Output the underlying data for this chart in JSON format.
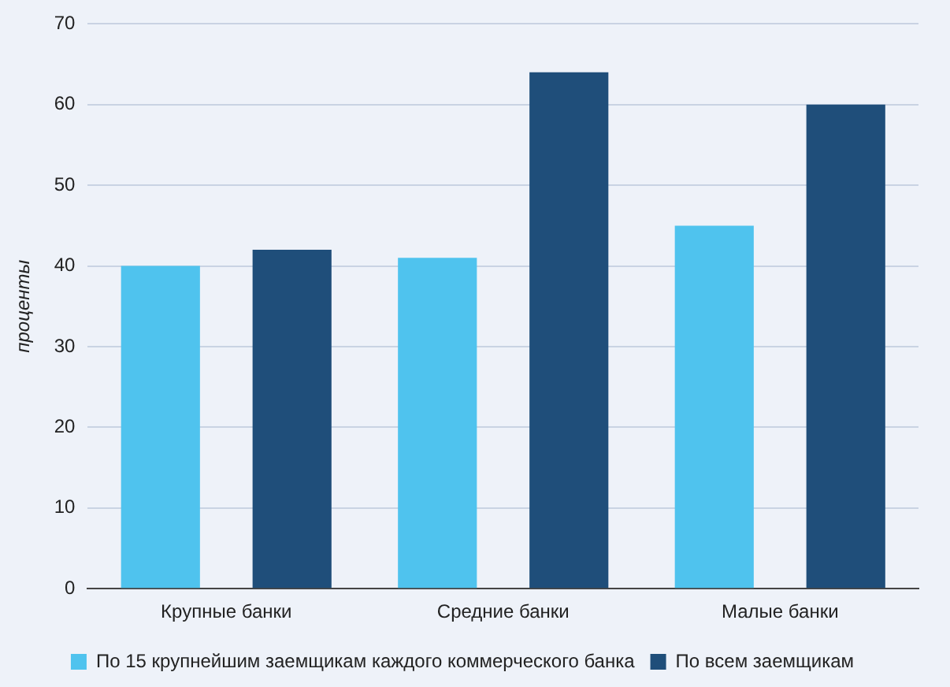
{
  "chart_data": {
    "type": "bar",
    "ylabel": "проценты",
    "categories": [
      "Крупные банки",
      "Средние банки",
      "Малые банки"
    ],
    "series": [
      {
        "name": "По 15 крупнейшим заемщикам каждого коммерческого банка",
        "color": "#4fc3ee",
        "values": [
          40,
          41,
          45
        ]
      },
      {
        "name": "По всем заемщикам",
        "color": "#1f4e7a",
        "values": [
          42,
          64,
          60
        ]
      }
    ],
    "ylim": [
      0,
      70
    ],
    "yticks": [
      0,
      10,
      20,
      30,
      40,
      50,
      60,
      70
    ],
    "grid": "y",
    "legend": "bottom"
  }
}
